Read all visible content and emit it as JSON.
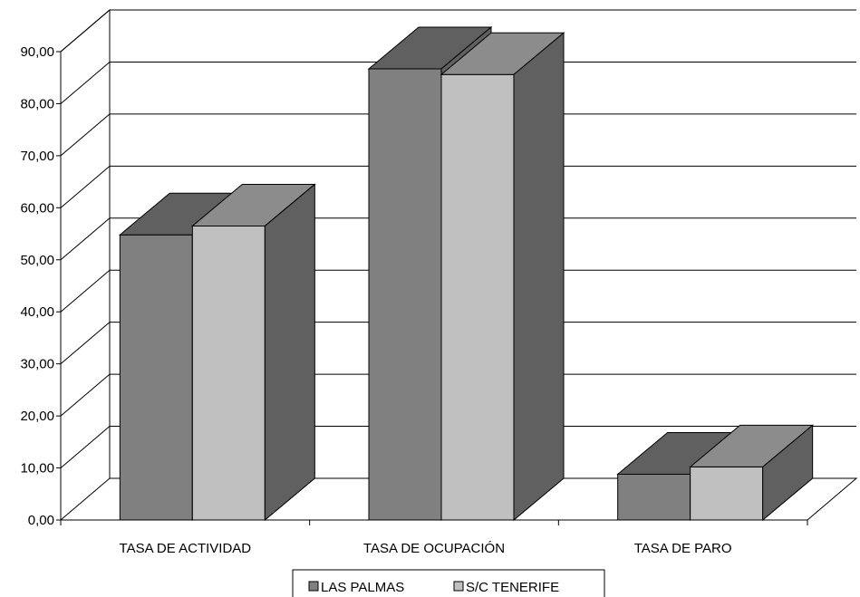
{
  "chart_data": {
    "type": "bar",
    "categories": [
      "TASA DE ACTIVIDAD",
      "TASA DE OCUPACIÓN",
      "TASA DE PARO"
    ],
    "series": [
      {
        "name": "LAS PALMAS",
        "values": [
          54.8,
          86.7,
          8.8
        ],
        "colors": {
          "front": "#808080",
          "top": "#606060",
          "side": "#606060"
        }
      },
      {
        "name": "S/C TENERIFE",
        "values": [
          56.5,
          85.6,
          10.2
        ],
        "colors": {
          "front": "#c0c0c0",
          "top": "#8c8c8c",
          "side": "#606060"
        }
      }
    ],
    "ylim": [
      0,
      90
    ],
    "yticks": [
      "0,00",
      "10,00",
      "20,00",
      "30,00",
      "40,00",
      "50,00",
      "60,00",
      "70,00",
      "80,00",
      "90,00"
    ],
    "grid": true,
    "legend": "bottom",
    "title": "",
    "xlabel": "",
    "ylabel": ""
  }
}
